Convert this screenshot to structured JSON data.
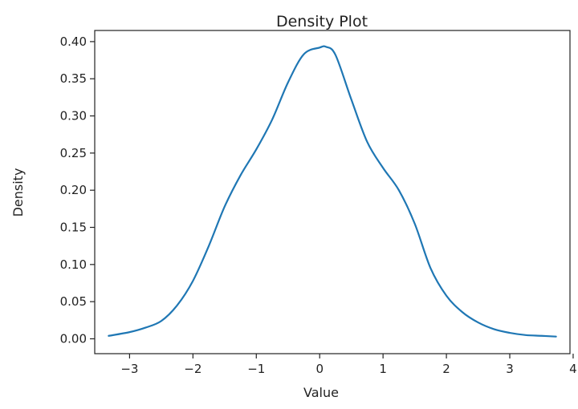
{
  "chart_data": {
    "type": "line",
    "title": "Density Plot",
    "xlabel": "Value",
    "ylabel": "Density",
    "xlim": [
      -3.55,
      3.95
    ],
    "ylim": [
      -0.02,
      0.415
    ],
    "xticks": [
      -3,
      -2,
      -1,
      0,
      1,
      2,
      3,
      4
    ],
    "xtick_labels": [
      "−3",
      "−2",
      "−1",
      "0",
      "1",
      "2",
      "3",
      "4"
    ],
    "yticks": [
      0.0,
      0.05,
      0.1,
      0.15,
      0.2,
      0.25,
      0.3,
      0.35,
      0.4
    ],
    "ytick_labels": [
      "0.00",
      "0.05",
      "0.10",
      "0.15",
      "0.20",
      "0.25",
      "0.30",
      "0.35",
      "0.40"
    ],
    "grid": false,
    "legend": false,
    "series": [
      {
        "color": "#1f77b4",
        "x": [
          -3.33,
          -3.0,
          -2.75,
          -2.5,
          -2.25,
          -2.0,
          -1.75,
          -1.5,
          -1.25,
          -1.0,
          -0.75,
          -0.5,
          -0.25,
          0.0,
          0.1,
          0.25,
          0.5,
          0.75,
          1.0,
          1.25,
          1.5,
          1.75,
          2.0,
          2.25,
          2.5,
          2.75,
          3.0,
          3.25,
          3.5,
          3.73
        ],
        "y": [
          0.004,
          0.009,
          0.015,
          0.024,
          0.045,
          0.078,
          0.125,
          0.178,
          0.22,
          0.255,
          0.295,
          0.345,
          0.383,
          0.392,
          0.393,
          0.382,
          0.322,
          0.265,
          0.23,
          0.2,
          0.155,
          0.095,
          0.058,
          0.036,
          0.022,
          0.013,
          0.008,
          0.005,
          0.004,
          0.003
        ]
      }
    ]
  }
}
